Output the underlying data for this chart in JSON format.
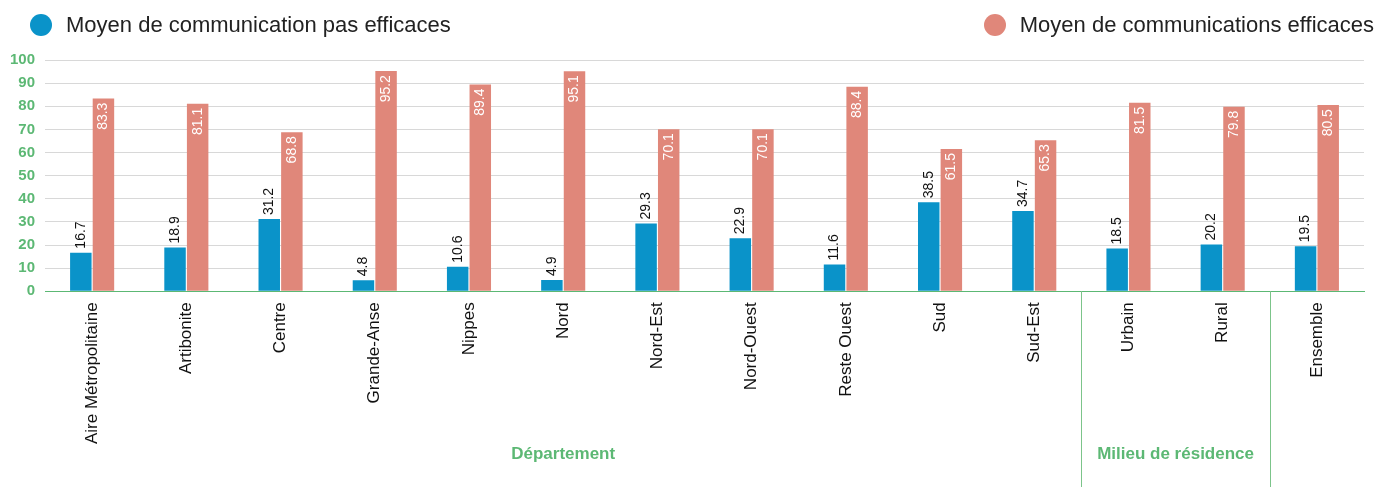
{
  "chart_data": {
    "type": "bar",
    "categories": [
      "Aire Métropolitaine",
      "Artibonite",
      "Centre",
      "Grande-Anse",
      "Nippes",
      "Nord",
      "Nord-Est",
      "Nord-Ouest",
      "Reste Ouest",
      "Sud",
      "Sud-Est",
      "Urbain",
      "Rural",
      "Ensemble"
    ],
    "series": [
      {
        "name": "Moyen de communication pas efficaces",
        "color": "#0a93c9",
        "values": [
          16.7,
          18.9,
          31.2,
          4.8,
          10.6,
          4.9,
          29.3,
          22.9,
          11.6,
          38.5,
          34.7,
          18.5,
          20.2,
          19.5
        ]
      },
      {
        "name": "Moyen de communications efficaces",
        "color": "#e0877a",
        "values": [
          83.3,
          81.1,
          68.8,
          95.2,
          89.4,
          95.1,
          70.1,
          70.1,
          88.4,
          61.5,
          65.3,
          81.5,
          79.8,
          80.5
        ]
      }
    ],
    "ylim": [
      0,
      100
    ],
    "yticks": [
      0,
      10,
      20,
      30,
      40,
      50,
      60,
      70,
      80,
      90,
      100
    ],
    "grid": "y",
    "legend": "top",
    "data_labels": true,
    "annotations": [
      "Département",
      "Milieu de résidence"
    ]
  }
}
